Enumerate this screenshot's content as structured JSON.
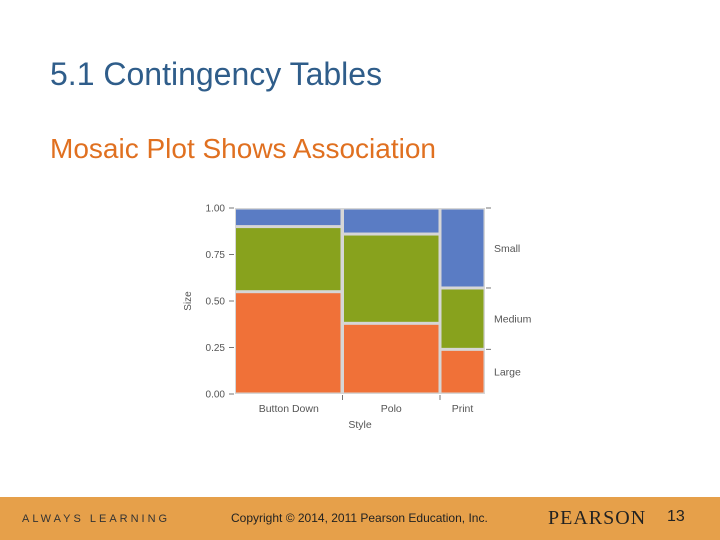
{
  "slide": {
    "title": "5.1 Contingency Tables",
    "subtitle": "Mosaic Plot Shows Association"
  },
  "footer": {
    "tagline": "ALWAYS LEARNING",
    "copyright": "Copyright © 2014, 2011 Pearson Education, Inc.",
    "brand": "PEARSON",
    "page_number": "13"
  },
  "colors": {
    "Small": "#5a7cc4",
    "Medium": "#88a21d",
    "Large": "#f07138"
  },
  "chart_data": {
    "type": "mosaic",
    "xlabel": "Style",
    "ylabel": "Size",
    "categories": [
      "Button Down",
      "Polo",
      "Print"
    ],
    "column_widths": [
      0.43,
      0.39,
      0.18
    ],
    "series": [
      {
        "name": "Large",
        "values": [
          0.55,
          0.38,
          0.24
        ]
      },
      {
        "name": "Medium",
        "values": [
          0.35,
          0.48,
          0.33
        ]
      },
      {
        "name": "Small",
        "values": [
          0.1,
          0.14,
          0.43
        ]
      }
    ],
    "yticks": [
      "0.00",
      "0.25",
      "0.50",
      "0.75",
      "1.00"
    ],
    "ylim": [
      0,
      1
    ],
    "legend_placement": "right"
  }
}
